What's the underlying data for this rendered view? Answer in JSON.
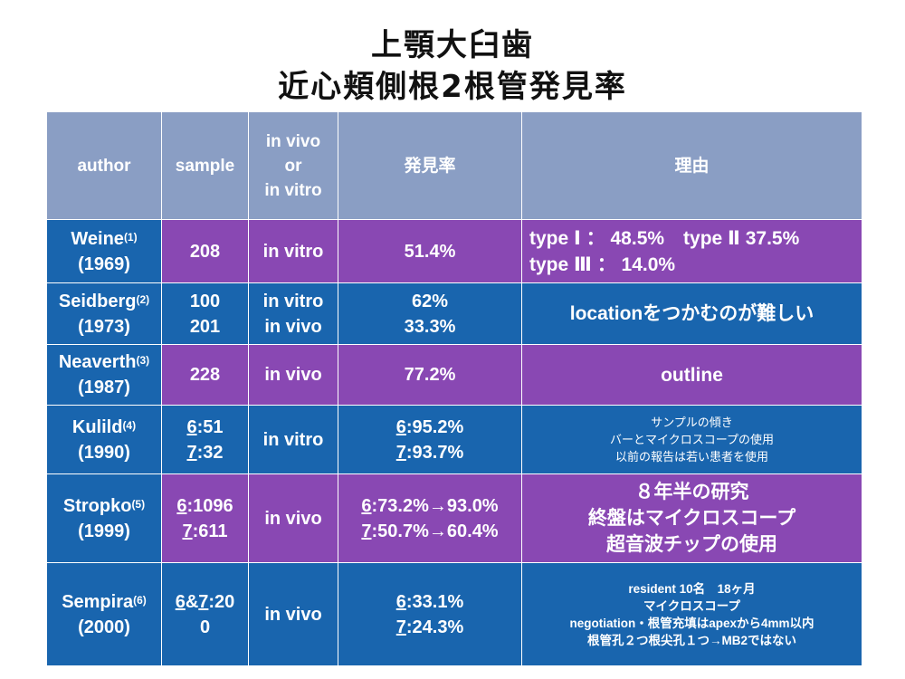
{
  "title_line1": "上顎大臼歯",
  "title_line2": "近心頬側根2根管発見率",
  "headers": {
    "author": "author",
    "sample": "sample",
    "vivo": [
      "in vivo",
      "or",
      "in vitro"
    ],
    "rate": "発見率",
    "reason": "理由"
  },
  "rows": [
    {
      "name": "Weine",
      "ref": "(1)",
      "year": "(1969)",
      "sample": [
        [
          "",
          "208"
        ]
      ],
      "method": [
        "in vitro"
      ],
      "rate": [
        [
          "",
          "51.4%"
        ]
      ],
      "reason": [
        "type Ⅰ ： 48.5%　type Ⅱ 37.5%",
        "type Ⅲ ： 14.0%"
      ]
    },
    {
      "name": "Seidberg",
      "ref": "(2)",
      "year": "(1973)",
      "sample": [
        [
          "",
          "100"
        ],
        [
          "",
          "201"
        ]
      ],
      "method": [
        "in vitro",
        "in vivo"
      ],
      "rate": [
        [
          "",
          "62%"
        ],
        [
          "",
          "33.3%"
        ]
      ],
      "reason": [
        "locationをつかむのが難しい"
      ]
    },
    {
      "name": "Neaverth",
      "ref": "(3)",
      "year": "(1987)",
      "sample": [
        [
          "",
          "228"
        ]
      ],
      "method": [
        "in vivo"
      ],
      "rate": [
        [
          "",
          "77.2%"
        ]
      ],
      "reason": [
        "outline"
      ]
    },
    {
      "name": "Kulild",
      "ref": "(4)",
      "year": "(1990)",
      "sample": [
        [
          "6",
          ":51"
        ],
        [
          "7",
          ":32"
        ]
      ],
      "method": [
        "in vitro"
      ],
      "rate": [
        [
          "6",
          ":95.2%"
        ],
        [
          "7",
          ":93.7%"
        ]
      ],
      "reason": [
        "サンプルの傾き",
        "バーとマイクロスコープの使用",
        "以前の報告は若い患者を使用"
      ]
    },
    {
      "name": "Stropko",
      "ref": "(5)",
      "year": "(1999)",
      "sample": [
        [
          "6",
          ":1096"
        ],
        [
          "7",
          ":611"
        ]
      ],
      "method": [
        "in vivo"
      ],
      "rate": [
        [
          "6",
          ":73.2%→93.0%"
        ],
        [
          "7",
          ":50.7%→60.4%"
        ]
      ],
      "reason": [
        "８年半の研究",
        "終盤はマイクロスコープ",
        "超音波チップの使用"
      ]
    },
    {
      "name": "Sempira",
      "ref": "(6)",
      "year": "(2000)",
      "sample": [
        [
          "6",
          "&"
        ],
        [
          "7",
          ":20"
        ],
        [
          "",
          "0"
        ]
      ],
      "method": [
        "in vivo"
      ],
      "rate": [
        [
          "6",
          ":33.1%"
        ],
        [
          "7",
          ":24.3%"
        ]
      ],
      "reason": [
        "resident 10名　18ヶ月",
        "マイクロスコープ",
        "negotiation・根管充填はapexから4mm以内",
        "根管孔２つ根尖孔１つ→MB2ではない"
      ]
    }
  ]
}
